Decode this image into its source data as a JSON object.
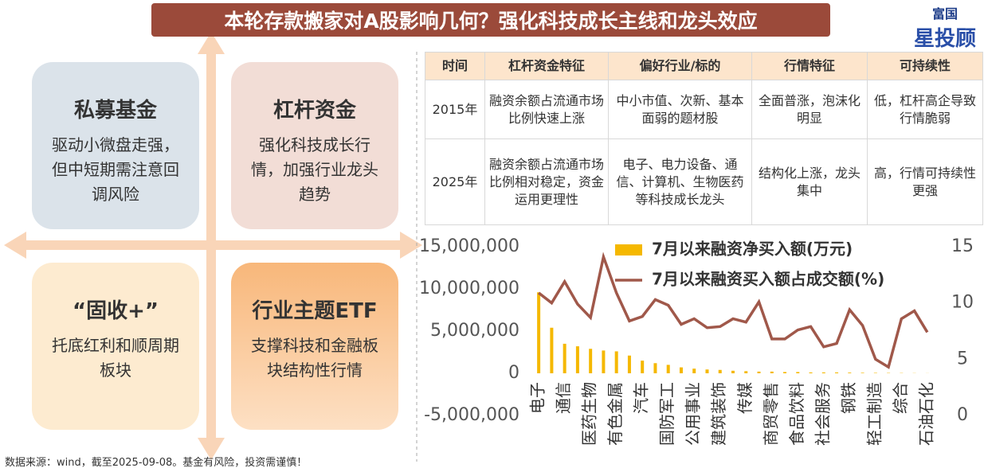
{
  "header": {
    "title": "本轮存款搬家对A股影响几何？强化科技成长主线和龙头效应",
    "logo": {
      "top": "富国",
      "bottom": "星投顾"
    }
  },
  "quadrants": [
    {
      "title": "私募基金",
      "text": "驱动小微盘走强，但中短期需注意回调风险"
    },
    {
      "title": "杠杆资金",
      "text": "强化科技成长行情，加强行业龙头趋势"
    },
    {
      "title": "“固收+”",
      "text": "托底红利和顺周期板块"
    },
    {
      "title": "行业主题ETF",
      "text": "支撑科技和金融板块结构性行情"
    }
  ],
  "table": {
    "header": [
      "时间",
      "杠杆资金特征",
      "偏好行业/标的",
      "行情特征",
      "可持续性"
    ],
    "rows": [
      [
        "2015年",
        "融资余额占流通市场比例快速上涨",
        "中小市值、次新、基本面弱的题材股",
        "全面普涨，泡沫化明显",
        "低，杠杆高企导致行情脆弱"
      ],
      [
        "2025年",
        "融资余额占流通市场比例相对稳定，资金运用更理性",
        "电子、电力设备、通信、计算机、生物医药等科技成长龙头",
        "结构化上涨，龙头集中",
        "高，行情可持续性更强"
      ]
    ]
  },
  "chart_data": {
    "type": "bar",
    "categories": [
      "电子",
      null,
      "通信",
      null,
      "医药生物",
      null,
      "有色金属",
      null,
      "汽车",
      null,
      "国防军工",
      null,
      "公用事业",
      null,
      "建筑装饰",
      null,
      "传媒",
      null,
      "商贸零售",
      null,
      "食品饮料",
      null,
      "社会服务",
      null,
      "钢铁",
      null,
      "轻工制造",
      null,
      "综合",
      null,
      "石油石化"
    ],
    "series": [
      {
        "name": "7月以来融资净买入额(万元)",
        "type": "bar",
        "color": "#f5b800",
        "values": [
          9600000,
          5400000,
          3500000,
          3200000,
          2900000,
          2700000,
          2600000,
          2100000,
          1500000,
          1200000,
          1000000,
          700000,
          550000,
          450000,
          400000,
          300000,
          250000,
          200000,
          200000,
          150000,
          150000,
          100000,
          100000,
          100000,
          80000,
          60000,
          50000,
          40000,
          30000,
          20000,
          10000
        ]
      },
      {
        "name": "7月以来融资买入额占成交额(%)",
        "type": "line",
        "axis": "y2",
        "color": "#a0584a",
        "values": [
          10.9,
          10.0,
          11.9,
          9.9,
          8.7,
          14.1,
          10.9,
          8.4,
          8.8,
          10.3,
          9.8,
          8.1,
          8.6,
          7.8,
          7.9,
          8.6,
          8.3,
          10.1,
          6.8,
          6.8,
          7.6,
          7.9,
          6.1,
          6.4,
          9.4,
          8.0,
          5.0,
          4.3,
          8.6,
          9.3,
          7.4
        ]
      }
    ],
    "ylim": [
      -5000000,
      15000000
    ],
    "yticks": [
      {
        "value": -5000000,
        "label": "-5,000,000"
      },
      0,
      {
        "value": 5000000,
        "label": "5,000,000"
      },
      {
        "value": 10000000,
        "label": "10,000,000"
      },
      {
        "value": 15000000,
        "label": "15,000,000"
      }
    ],
    "y2lim": [
      0,
      15
    ],
    "y2ticks": [
      0,
      5,
      10,
      15
    ],
    "grid": false,
    "legend": "top"
  },
  "footer": "数据来源：wind，截至2025-09-08。基金有风险，投资需谨慎！"
}
